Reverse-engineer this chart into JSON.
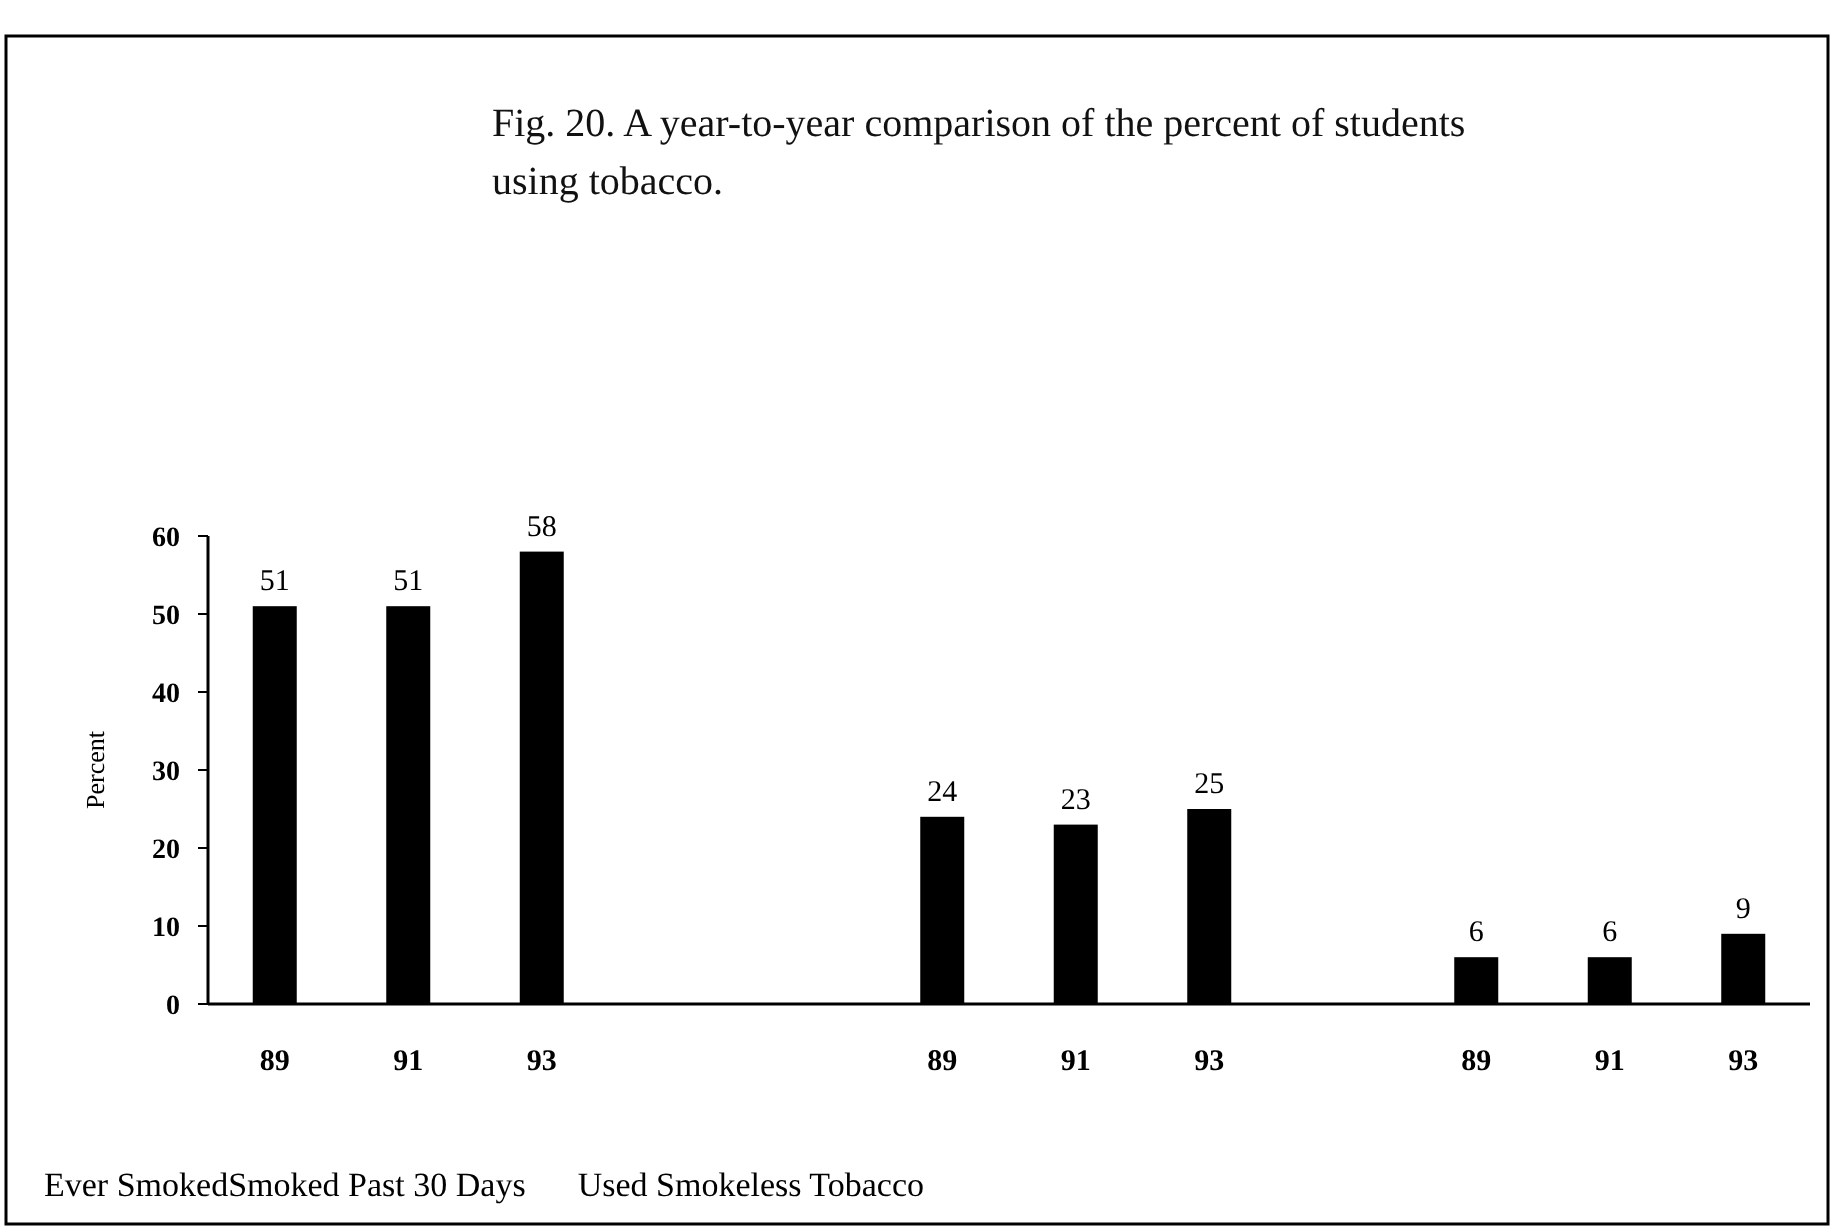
{
  "chart_data": {
    "type": "bar",
    "title": "Fig. 20.  A year-to-year comparison of the percent of students using tobacco.",
    "ylabel": "Percent",
    "categories": [
      "89",
      "91",
      "93",
      null,
      null,
      "89",
      "91",
      "93",
      null,
      "89",
      "91",
      "93"
    ],
    "values": [
      51,
      51,
      58,
      null,
      null,
      24,
      23,
      25,
      null,
      6,
      6,
      9
    ],
    "color": "#000000",
    "ylim": [
      0,
      60
    ],
    "yticks": [
      0,
      10,
      20,
      30,
      40,
      50,
      60
    ],
    "data_labels": true,
    "grid": false,
    "annotations": [
      "Ever Smoked",
      "Smoked Past 30 Days",
      "Used Smokeless Tobacco"
    ]
  }
}
